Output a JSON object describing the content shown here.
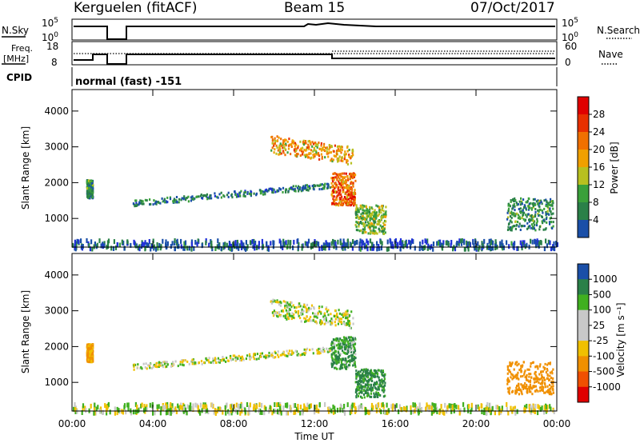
{
  "header": {
    "station": "Kerguelen (fitACF)",
    "beam": "Beam 15",
    "date": "07/Oct/2017"
  },
  "status_panel": {
    "nsky_label": "N.Sky",
    "nsky_top": "10^5",
    "nsky_bottom": "10^0",
    "nsearch_label": "N.Search",
    "nsearch_top": "10^5",
    "nsearch_bottom": "10^0",
    "freq_label_1": "Freq.",
    "freq_label_2": "[MHz]",
    "freq_top": "18",
    "freq_bottom": "8",
    "nave_label": "Nave",
    "nave_top": "60",
    "nave_bottom": "0",
    "cpid_label": "CPID",
    "cpid_value": "normal (fast) -151"
  },
  "colors": {
    "power_scale": [
      "#2030d8",
      "#1a4fa8",
      "#2a8048",
      "#3aa03a",
      "#b8c020",
      "#f0a000",
      "#f07000",
      "#e83000",
      "#e00000"
    ],
    "velocity_scale": [
      "#e00000",
      "#f05000",
      "#f09000",
      "#f0c000",
      "#c8c8c8",
      "#c8c8c8",
      "#40b020",
      "#2a8048",
      "#1a4fa8",
      "#2030d8"
    ]
  },
  "chart_data": [
    {
      "type": "heatmap",
      "title": "",
      "xlabel": "",
      "ylabel": "Slant Range [km]",
      "x_ticks": [
        "00:00",
        "04:00",
        "08:00",
        "12:00",
        "16:00",
        "20:00",
        "00:00"
      ],
      "xlim_hours": [
        0,
        24
      ],
      "ylim_km": [
        200,
        4600
      ],
      "y_ticks": [
        1000,
        2000,
        3000,
        4000
      ],
      "colorbar": {
        "label": "Power [dB]",
        "range": [
          0,
          32
        ],
        "ticks": [
          "4",
          "8",
          "12",
          "16",
          "20",
          "24",
          "28"
        ]
      },
      "features": [
        {
          "name": "early-echo",
          "t": [
            0.7,
            1.0
          ],
          "range_km": [
            1600,
            2100
          ],
          "value_dB": 10
        },
        {
          "name": "long-band",
          "t": [
            3.0,
            12.8
          ],
          "range_km": [
            1450,
            2000
          ],
          "value_dB": 8
        },
        {
          "name": "upper-cluster",
          "t": [
            9.8,
            13.9
          ],
          "range_km": [
            2500,
            3500
          ],
          "value_dB": 16
        },
        {
          "name": "lower-cluster",
          "t": [
            12.8,
            14.0
          ],
          "range_km": [
            1400,
            2300
          ],
          "value_dB": 20
        },
        {
          "name": "post-noon-echo",
          "t": [
            14.0,
            15.5
          ],
          "range_km": [
            600,
            1400
          ],
          "value_dB": 14
        },
        {
          "name": "evening-echo",
          "t": [
            21.5,
            23.8
          ],
          "range_km": [
            700,
            1600
          ],
          "value_dB": 10
        },
        {
          "name": "ground-scatter",
          "t": [
            0,
            24
          ],
          "range_km": [
            200,
            450
          ],
          "value_dB": 6
        }
      ]
    },
    {
      "type": "heatmap",
      "title": "",
      "xlabel": "Time UT",
      "ylabel": "Slant Range [km]",
      "x_ticks": [
        "00:00",
        "04:00",
        "08:00",
        "12:00",
        "16:00",
        "20:00",
        "00:00"
      ],
      "xlim_hours": [
        0,
        24
      ],
      "ylim_km": [
        200,
        4600
      ],
      "y_ticks": [
        1000,
        2000,
        3000,
        4000
      ],
      "colorbar": {
        "label": "Velocity [m s⁻¹]",
        "ticks": [
          "1000",
          "500",
          "100",
          "25",
          "-25",
          "-100",
          "-500",
          "-1000"
        ]
      },
      "features": [
        {
          "name": "early-echo",
          "t": [
            0.7,
            1.0
          ],
          "range_km": [
            1600,
            2100
          ],
          "value_ms": -150
        },
        {
          "name": "long-band",
          "t": [
            3.0,
            12.8
          ],
          "range_km": [
            1450,
            2000
          ],
          "value_ms": 0
        },
        {
          "name": "upper-cluster",
          "t": [
            9.8,
            13.9
          ],
          "range_km": [
            2500,
            3500
          ],
          "value_ms": 0
        },
        {
          "name": "lower-cluster",
          "t": [
            12.8,
            14.0
          ],
          "range_km": [
            1400,
            2300
          ],
          "value_ms": 100
        },
        {
          "name": "post-noon-echo",
          "t": [
            14.0,
            15.5
          ],
          "range_km": [
            600,
            1400
          ],
          "value_ms": 150
        },
        {
          "name": "evening-echo",
          "t": [
            21.5,
            23.8
          ],
          "range_km": [
            700,
            1600
          ],
          "value_ms": -200
        },
        {
          "name": "ground-scatter",
          "t": [
            0,
            24
          ],
          "range_km": [
            200,
            450
          ],
          "value_ms": 0
        }
      ]
    }
  ]
}
